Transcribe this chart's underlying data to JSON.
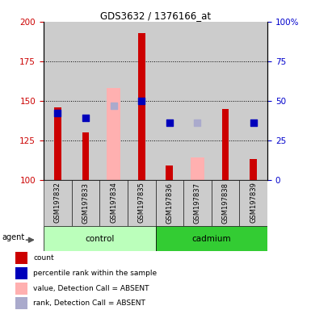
{
  "title": "GDS3632 / 1376166_at",
  "samples": [
    "GSM197832",
    "GSM197833",
    "GSM197834",
    "GSM197835",
    "GSM197836",
    "GSM197837",
    "GSM197838",
    "GSM197839"
  ],
  "ylim_left": [
    100,
    200
  ],
  "ylim_right": [
    0,
    100
  ],
  "yticks_left": [
    100,
    125,
    150,
    175,
    200
  ],
  "yticks_right": [
    0,
    25,
    50,
    75,
    100
  ],
  "ytick_labels_right": [
    "0",
    "25",
    "50",
    "75",
    "100%"
  ],
  "red_bar_tops": [
    146,
    130,
    100,
    193,
    109,
    100,
    145,
    113
  ],
  "pink_bar_tops": [
    100,
    100,
    158,
    100,
    100,
    114,
    100,
    100
  ],
  "blue_sq_vals": [
    142,
    139,
    null,
    150,
    136,
    null,
    null,
    136
  ],
  "lblue_sq_vals": [
    null,
    null,
    147,
    null,
    null,
    136,
    null,
    null
  ],
  "bar_bottom": 100,
  "red_bar_width": 0.25,
  "pink_bar_width": 0.5,
  "sq_size": 35,
  "colors": {
    "red_bar": "#cc0000",
    "pink_bar": "#ffb0b0",
    "blue_sq": "#0000bb",
    "lblue_sq": "#aaaacc",
    "control_bg": "#bbffbb",
    "cadmium_bg": "#33cc33",
    "sample_bg": "#cccccc",
    "left_axis": "#cc0000",
    "right_axis": "#0000cc"
  },
  "control_indices": [
    0,
    1,
    2,
    3
  ],
  "cadmium_indices": [
    4,
    5,
    6,
    7
  ],
  "legend_labels": [
    "count",
    "percentile rank within the sample",
    "value, Detection Call = ABSENT",
    "rank, Detection Call = ABSENT"
  ],
  "legend_colors": [
    "#cc0000",
    "#0000bb",
    "#ffb0b0",
    "#aaaacc"
  ]
}
